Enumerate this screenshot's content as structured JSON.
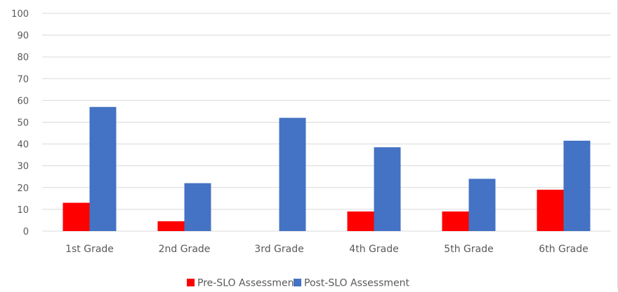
{
  "chart_data": {
    "type": "bar",
    "categories": [
      "1st Grade",
      "2nd Grade",
      "3rd Grade",
      "4th Grade",
      "5th Grade",
      "6th Grade"
    ],
    "series": [
      {
        "name": "Pre-SLO Assessment",
        "color": "#ff0000",
        "values": [
          13,
          4.5,
          0,
          9,
          9,
          19
        ]
      },
      {
        "name": "Post-SLO Assessment",
        "color": "#4472c4",
        "values": [
          57,
          22,
          52,
          38.5,
          24,
          41.5
        ]
      }
    ],
    "y_ticks": [
      "0",
      "10",
      "20",
      "30",
      "40",
      "50",
      "60",
      "70",
      "80",
      "90",
      "100"
    ],
    "ylim": [
      0,
      100
    ],
    "grid": true,
    "legend_position": "bottom-center",
    "title": "",
    "xlabel": "",
    "ylabel": ""
  },
  "colors": {
    "grid": "#d9d9d9",
    "axis_text": "#595959"
  }
}
